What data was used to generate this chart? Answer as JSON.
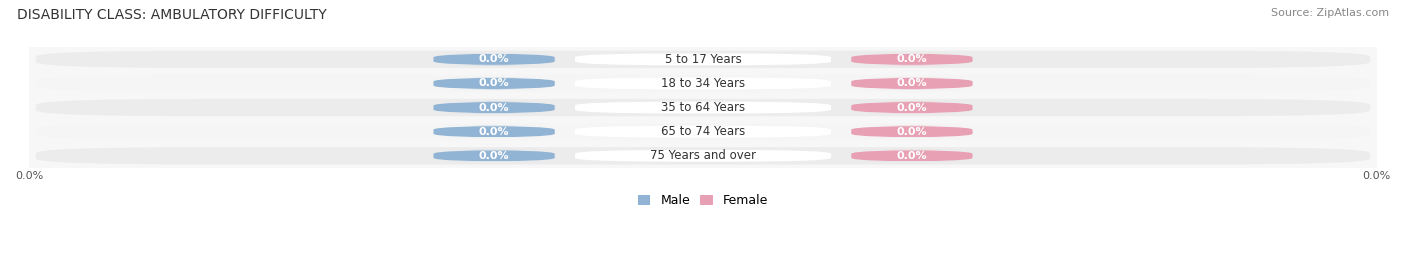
{
  "title": "DISABILITY CLASS: AMBULATORY DIFFICULTY",
  "source": "Source: ZipAtlas.com",
  "categories": [
    "5 to 17 Years",
    "18 to 34 Years",
    "35 to 64 Years",
    "65 to 74 Years",
    "75 Years and over"
  ],
  "male_values": [
    0.0,
    0.0,
    0.0,
    0.0,
    0.0
  ],
  "female_values": [
    0.0,
    0.0,
    0.0,
    0.0,
    0.0
  ],
  "male_color": "#92b4d4",
  "female_color": "#e8a0b4",
  "bar_bg_color_odd": "#ececec",
  "bar_bg_color_even": "#f5f5f5",
  "x_left_label": "0.0%",
  "x_right_label": "0.0%",
  "title_fontsize": 10,
  "source_fontsize": 8,
  "label_fontsize": 8,
  "legend_fontsize": 9,
  "bg_color": "#ffffff",
  "plot_bg_color": "#f7f7f7"
}
